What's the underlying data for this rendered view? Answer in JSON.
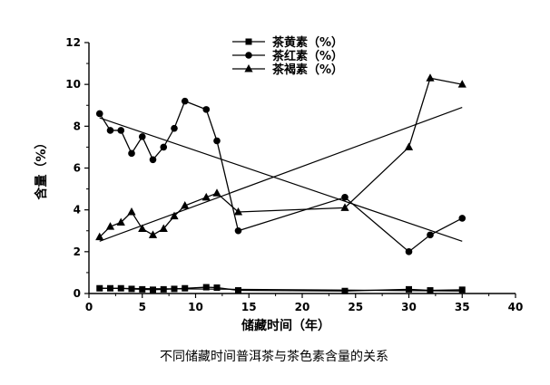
{
  "chart_data": {
    "type": "line",
    "xlabel": "储藏时间（年）",
    "ylabel": "含量（%）",
    "caption": "不同储藏时间普洱茶与茶色素含量的关系",
    "xlim": [
      0,
      40
    ],
    "ylim": [
      0,
      12
    ],
    "xticks": [
      0,
      5,
      10,
      15,
      20,
      25,
      30,
      35,
      40
    ],
    "yticks": [
      0,
      2,
      4,
      6,
      8,
      10,
      12
    ],
    "grid": false,
    "legend_position": "top-center",
    "series": [
      {
        "name": "茶黄素（%）",
        "marker": "square",
        "x": [
          1,
          2,
          3,
          4,
          5,
          6,
          7,
          8,
          9,
          11,
          12,
          14,
          24,
          30,
          32,
          35
        ],
        "y": [
          0.25,
          0.25,
          0.25,
          0.22,
          0.2,
          0.18,
          0.2,
          0.22,
          0.25,
          0.3,
          0.28,
          0.15,
          0.12,
          0.2,
          0.15,
          0.18
        ],
        "trend": [
          [
            1,
            0.25
          ],
          [
            35,
            0.12
          ]
        ]
      },
      {
        "name": "茶红素（%）",
        "marker": "circle",
        "x": [
          1,
          2,
          3,
          4,
          5,
          6,
          7,
          8,
          9,
          11,
          12,
          14,
          24,
          30,
          32,
          35
        ],
        "y": [
          8.6,
          7.8,
          7.8,
          6.7,
          7.5,
          6.4,
          7.0,
          7.9,
          9.2,
          8.8,
          7.3,
          3.0,
          4.6,
          2.0,
          2.8,
          3.6
        ],
        "trend": [
          [
            1,
            8.4
          ],
          [
            35,
            2.5
          ]
        ]
      },
      {
        "name": "茶褐素（%）",
        "marker": "triangle",
        "x": [
          1,
          2,
          3,
          4,
          5,
          6,
          7,
          8,
          9,
          11,
          12,
          14,
          24,
          30,
          32,
          35
        ],
        "y": [
          2.7,
          3.2,
          3.4,
          3.9,
          3.1,
          2.8,
          3.1,
          3.7,
          4.2,
          4.6,
          4.8,
          3.9,
          4.1,
          7.0,
          10.3,
          10.0
        ],
        "trend": [
          [
            1,
            2.5
          ],
          [
            35,
            8.9
          ]
        ]
      }
    ]
  }
}
